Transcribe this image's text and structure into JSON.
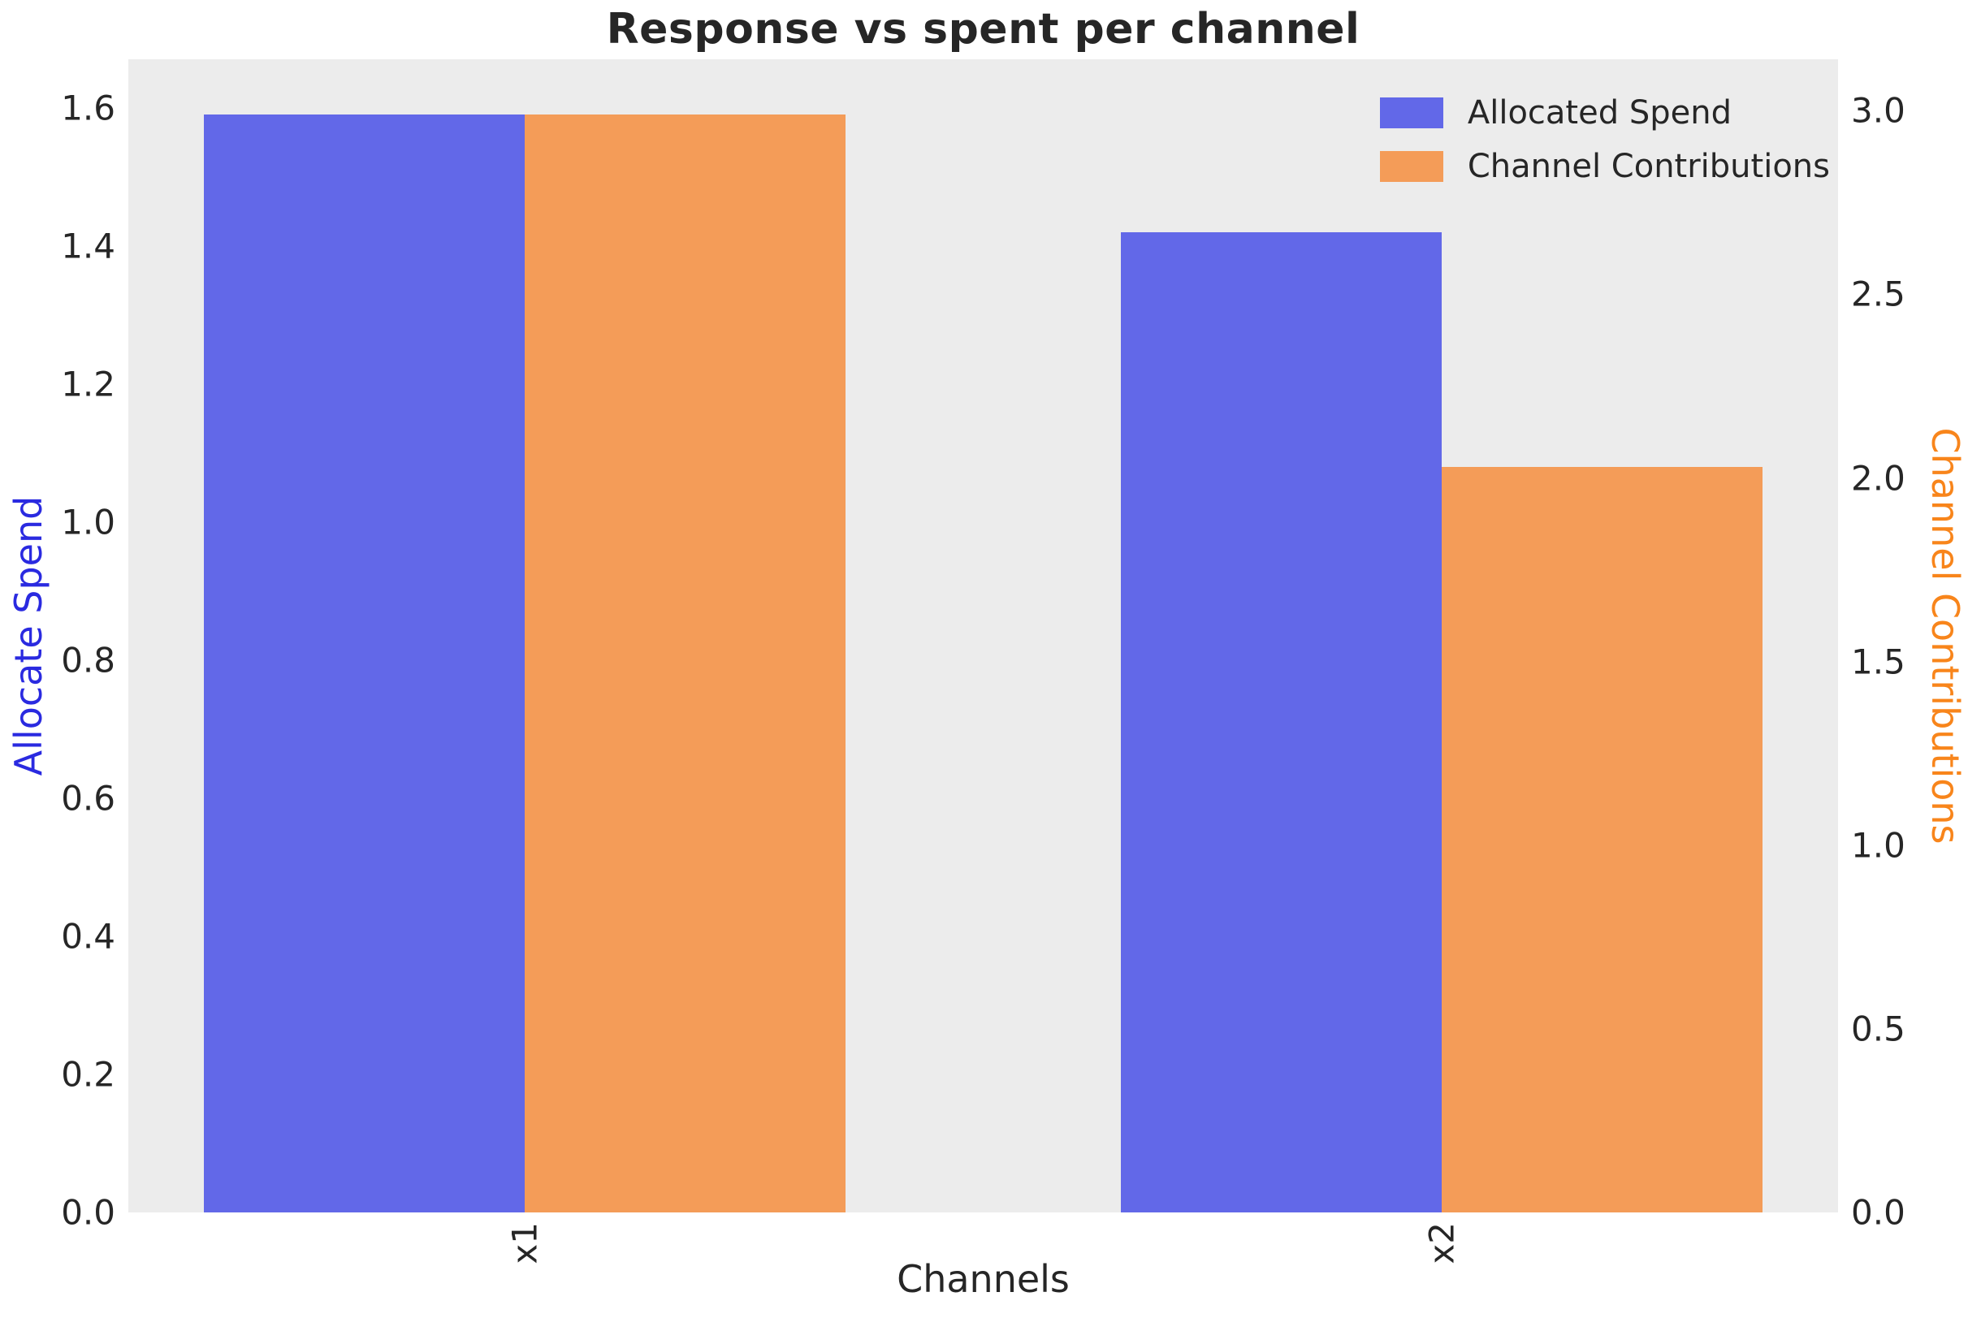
{
  "title": "Response vs spent per channel",
  "legend": {
    "items": [
      {
        "label": "Allocated Spend",
        "color": "#6268e8"
      },
      {
        "label": "Channel Contributions",
        "color": "#f49c58"
      }
    ]
  },
  "axes": {
    "x": {
      "label": "Channels",
      "tick_labels": [
        "x1",
        "x2"
      ]
    },
    "y_left": {
      "label": "Allocate Spend",
      "color": "#2a2ae0",
      "tick_labels": [
        "0.0",
        "0.2",
        "0.4",
        "0.6",
        "0.8",
        "1.0",
        "1.2",
        "1.4",
        "1.6"
      ]
    },
    "y_right": {
      "label": "Channel Contributions",
      "color": "#f8851b",
      "tick_labels": [
        "0.0",
        "0.5",
        "1.0",
        "1.5",
        "2.0",
        "2.5",
        "3.0"
      ]
    }
  },
  "chart_data": {
    "type": "bar",
    "title": "Response vs spent per channel",
    "categories": [
      "x1",
      "x2"
    ],
    "series": [
      {
        "name": "Allocated Spend",
        "axis": "left",
        "color": "#6268e8",
        "values": [
          1.59,
          1.42
        ]
      },
      {
        "name": "Channel Contributions",
        "axis": "right",
        "color": "#f49c58",
        "values": [
          2.99,
          2.03
        ]
      }
    ],
    "xlabel": "Channels",
    "ylabel_left": "Allocate Spend",
    "ylabel_right": "Channel Contributions",
    "ylim_left": [
      0,
      1.67
    ],
    "ylim_right": [
      0,
      3.14
    ],
    "xlim": [
      -0.4325,
      1.4325
    ],
    "bar_width": 0.35,
    "y_left_ticks": [
      0.0,
      0.2,
      0.4,
      0.6,
      0.8,
      1.0,
      1.2,
      1.4,
      1.6
    ],
    "y_right_ticks": [
      0.0,
      0.5,
      1.0,
      1.5,
      2.0,
      2.5,
      3.0
    ],
    "grid": false,
    "legend_position": "upper right",
    "plot_bg": "#ececec"
  }
}
